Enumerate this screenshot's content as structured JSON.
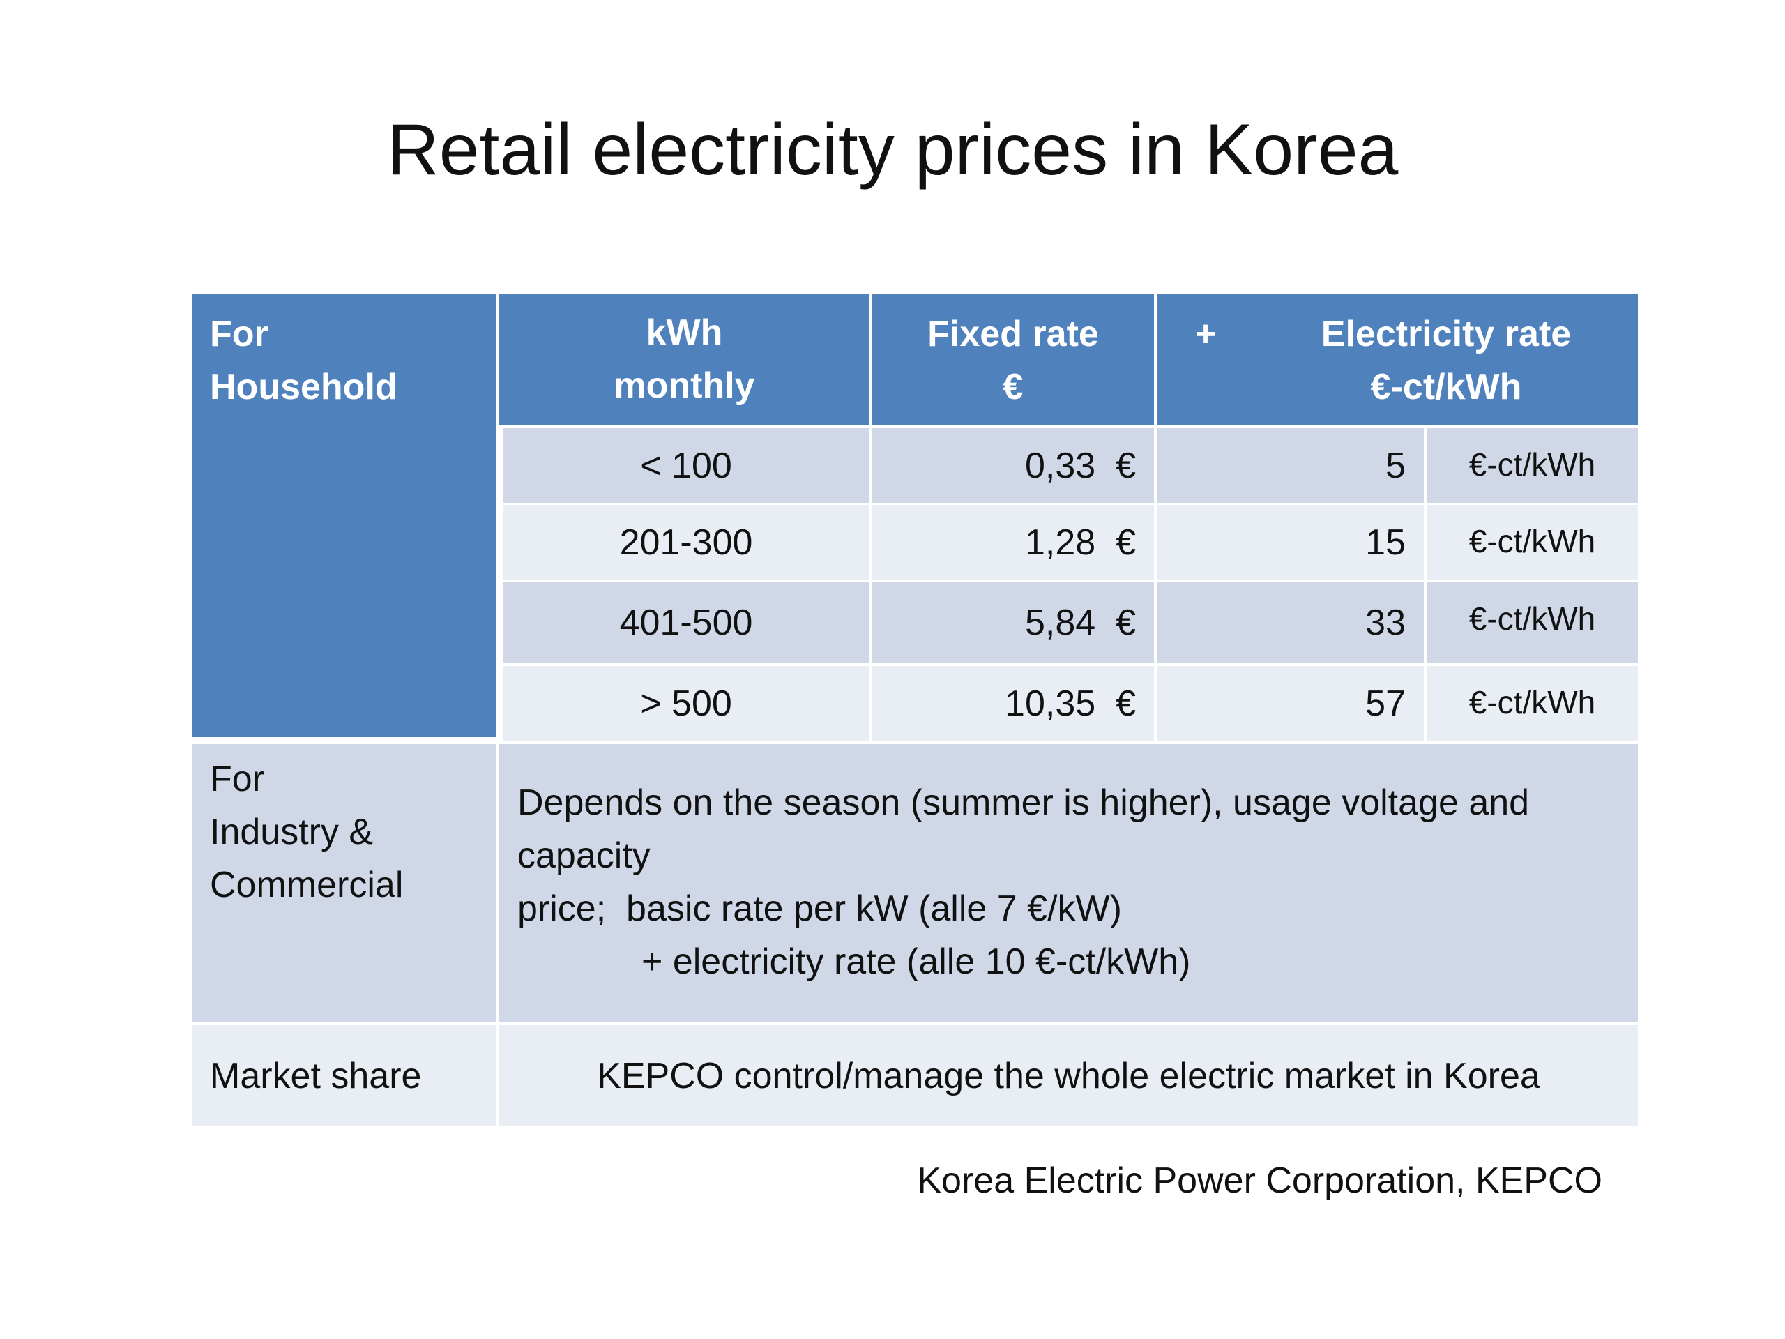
{
  "title": "Retail electricity prices in Korea",
  "table": {
    "header": {
      "segment": [
        "For",
        "Household"
      ],
      "kwh": [
        "kWh",
        "monthly"
      ],
      "fixed_rate": [
        "Fixed rate",
        "€"
      ],
      "plus": "+",
      "electricity_rate": [
        "Electricity rate",
        "€-ct/kWh"
      ]
    },
    "rows": [
      {
        "kwh": "< 100",
        "fixed_rate": "0,33  €",
        "electricity_rate": 5,
        "unit": "€-ct/kWh"
      },
      {
        "kwh": "201-300",
        "fixed_rate": "1,28  €",
        "electricity_rate": 15,
        "unit": "€-ct/kWh"
      },
      {
        "kwh": "401-500",
        "fixed_rate": "5,84  €",
        "electricity_rate": 33,
        "unit": "€-ct/kWh"
      },
      {
        "kwh": "> 500",
        "fixed_rate": "10,35  €",
        "electricity_rate": 57,
        "unit": "€-ct/kWh"
      }
    ],
    "industry": {
      "label": [
        "For",
        "Industry &",
        "Commercial"
      ],
      "text": [
        "Depends on the season (summer is higher), usage voltage and capacity",
        "price;  basic rate per kW (alle 7 €/kW)",
        "+ electricity rate (alle 10 €-ct/kWh)"
      ]
    },
    "market": {
      "label": "Market share",
      "text": "KEPCO control/manage the whole electric market in Korea"
    }
  },
  "source": "Korea Electric Power Corporation, KEPCO"
}
